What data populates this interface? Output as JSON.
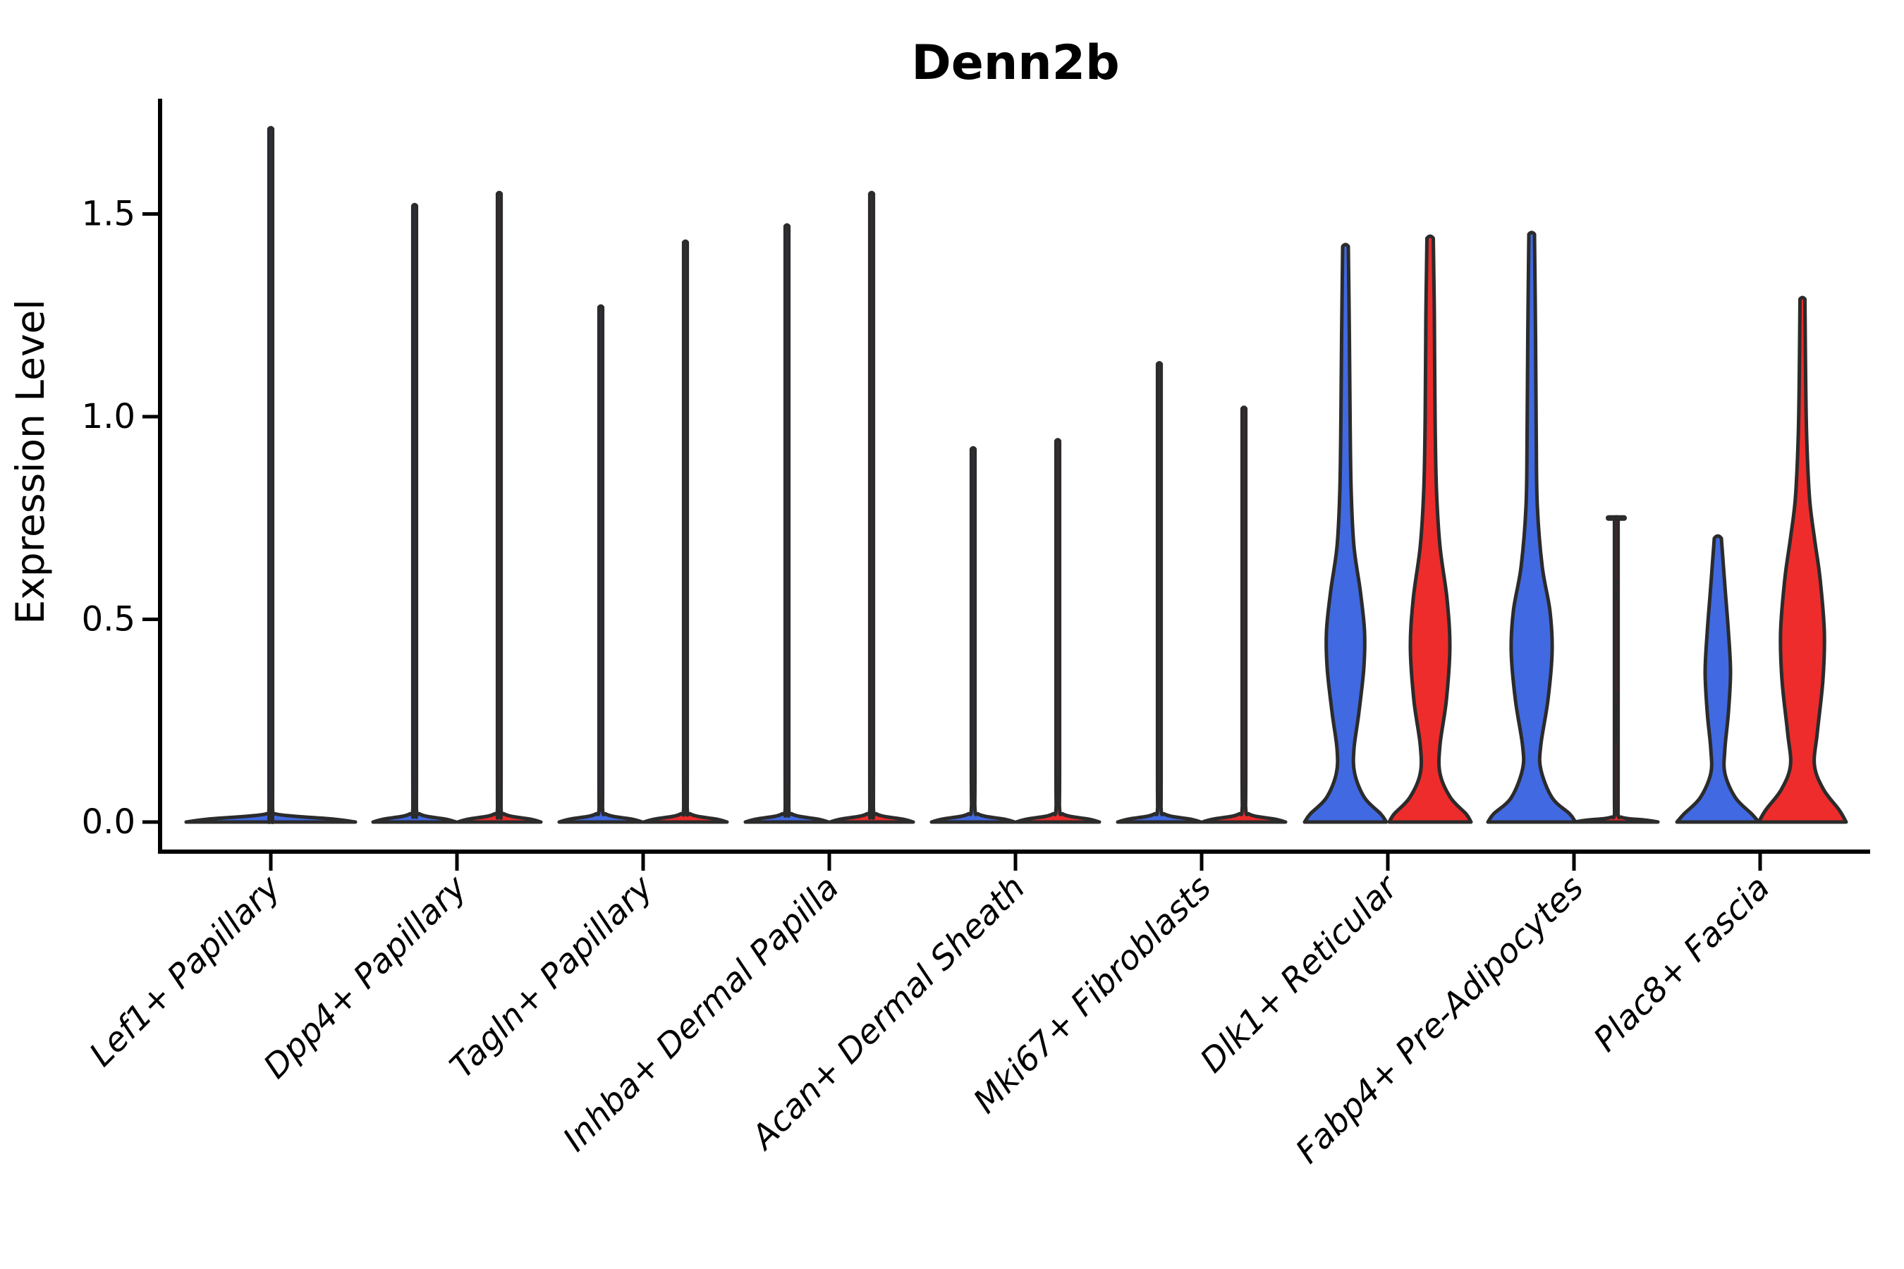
{
  "title": "Denn2b",
  "axes": {
    "ylabel": "Expression Level",
    "yticks": [
      "0.0",
      "0.5",
      "1.0",
      "1.5"
    ]
  },
  "colors": {
    "blue": "#4169E1",
    "red": "#EE2C2C",
    "outline": "#2B2B2B",
    "axis": "#000000"
  },
  "chart_data": {
    "type": "violin",
    "title": "Denn2b",
    "ylabel": "Expression Level",
    "ylim": [
      0,
      1.79
    ],
    "ytick_values": [
      0,
      0.5,
      1.0,
      1.5
    ],
    "legend": "none",
    "grid": false,
    "categories": [
      "Lef1+ Papillary",
      "Dpp4+ Papillary",
      "Tagln+ Papillary",
      "Inhba+ Dermal Papilla",
      "Acan+ Dermal Sheath",
      "Mki67+ Fibroblasts",
      "Dlk1+ Reticular",
      "Fabp4+ Pre-Adipocytes",
      "Plac8+ Fascia"
    ],
    "groups": [
      {
        "category": "Lef1+ Papillary",
        "violins": [
          {
            "color": "blue",
            "kind": "spike",
            "max": 1.71,
            "base_halfwidth": 120,
            "offset": 0
          }
        ]
      },
      {
        "category": "Dpp4+ Papillary",
        "violins": [
          {
            "color": "blue",
            "kind": "spike",
            "max": 1.52,
            "base_halfwidth": 59,
            "offset": -60
          },
          {
            "color": "red",
            "kind": "spike",
            "max": 1.55,
            "base_halfwidth": 59,
            "offset": 60
          }
        ]
      },
      {
        "category": "Tagln+ Papillary",
        "violins": [
          {
            "color": "blue",
            "kind": "spike",
            "max": 1.27,
            "base_halfwidth": 59,
            "offset": -60
          },
          {
            "color": "red",
            "kind": "spike",
            "max": 1.43,
            "base_halfwidth": 59,
            "offset": 60
          }
        ]
      },
      {
        "category": "Inhba+ Dermal Papilla",
        "violins": [
          {
            "color": "blue",
            "kind": "spike",
            "max": 1.47,
            "base_halfwidth": 59,
            "offset": -60
          },
          {
            "color": "red",
            "kind": "spike",
            "max": 1.55,
            "base_halfwidth": 59,
            "offset": 60
          }
        ]
      },
      {
        "category": "Acan+ Dermal Sheath",
        "violins": [
          {
            "color": "blue",
            "kind": "spike",
            "max": 0.92,
            "base_halfwidth": 59,
            "offset": -60
          },
          {
            "color": "red",
            "kind": "spike",
            "max": 0.94,
            "base_halfwidth": 59,
            "offset": 60
          }
        ]
      },
      {
        "category": "Mki67+ Fibroblasts",
        "violins": [
          {
            "color": "blue",
            "kind": "spike",
            "max": 1.13,
            "base_halfwidth": 59,
            "offset": -60
          },
          {
            "color": "red",
            "kind": "spike",
            "max": 1.02,
            "base_halfwidth": 59,
            "offset": 60
          }
        ]
      },
      {
        "category": "Dlk1+ Reticular",
        "violins": [
          {
            "color": "blue",
            "kind": "violin",
            "max": 1.42,
            "offset": -60,
            "profile": [
              [
                0,
                58
              ],
              [
                0.02,
                50
              ],
              [
                0.06,
                27
              ],
              [
                0.12,
                13
              ],
              [
                0.18,
                12
              ],
              [
                0.27,
                19
              ],
              [
                0.38,
                26
              ],
              [
                0.47,
                27
              ],
              [
                0.57,
                21
              ],
              [
                0.68,
                12
              ],
              [
                0.82,
                8
              ],
              [
                1.0,
                6.5
              ],
              [
                1.2,
                5.5
              ],
              [
                1.42,
                4
              ]
            ]
          },
          {
            "color": "red",
            "kind": "violin",
            "max": 1.44,
            "offset": 60,
            "profile": [
              [
                0,
                58
              ],
              [
                0.02,
                51
              ],
              [
                0.06,
                29
              ],
              [
                0.12,
                14
              ],
              [
                0.19,
                14
              ],
              [
                0.3,
                23
              ],
              [
                0.43,
                28
              ],
              [
                0.55,
                24
              ],
              [
                0.68,
                14
              ],
              [
                0.82,
                9
              ],
              [
                1.0,
                7
              ],
              [
                1.25,
                6
              ],
              [
                1.44,
                4.5
              ]
            ]
          }
        ]
      },
      {
        "category": "Fabp4+ Pre-Adipocytes",
        "violins": [
          {
            "color": "blue",
            "kind": "violin",
            "max": 1.45,
            "offset": -60,
            "profile": [
              [
                0,
                62
              ],
              [
                0.02,
                54
              ],
              [
                0.06,
                29
              ],
              [
                0.13,
                13
              ],
              [
                0.19,
                13
              ],
              [
                0.3,
                23
              ],
              [
                0.42,
                29
              ],
              [
                0.52,
                26
              ],
              [
                0.63,
                15
              ],
              [
                0.78,
                8
              ],
              [
                0.95,
                6.5
              ],
              [
                1.2,
                5.5
              ],
              [
                1.45,
                4
              ]
            ]
          },
          {
            "color": "red",
            "kind": "spike",
            "max": 0.75,
            "base_halfwidth": 59,
            "offset": 60,
            "base_rise": 0.012,
            "cap_width": 22,
            "dots": [
              0.59,
              0.56,
              0.31,
              0.285,
              0.27,
              0.25,
              0.23,
              0.22,
              0.205
            ]
          }
        ]
      },
      {
        "category": "Plac8+ Fascia",
        "violins": [
          {
            "color": "blue",
            "kind": "violin",
            "max": 0.7,
            "offset": -60,
            "profile": [
              [
                0,
                58
              ],
              [
                0.02,
                48
              ],
              [
                0.06,
                25
              ],
              [
                0.12,
                10
              ],
              [
                0.18,
                10
              ],
              [
                0.27,
                15
              ],
              [
                0.37,
                18
              ],
              [
                0.47,
                15
              ],
              [
                0.56,
                11
              ],
              [
                0.63,
                8
              ],
              [
                0.7,
                5
              ]
            ]
          },
          {
            "color": "red",
            "kind": "violin",
            "max": 1.29,
            "offset": 60,
            "profile": [
              [
                0,
                62
              ],
              [
                0.03,
                52
              ],
              [
                0.08,
                30
              ],
              [
                0.14,
                17
              ],
              [
                0.22,
                21
              ],
              [
                0.35,
                29
              ],
              [
                0.47,
                31
              ],
              [
                0.6,
                25
              ],
              [
                0.7,
                17
              ],
              [
                0.8,
                10
              ],
              [
                0.95,
                6
              ],
              [
                1.1,
                4.5
              ],
              [
                1.29,
                3.5
              ]
            ]
          }
        ]
      }
    ]
  }
}
